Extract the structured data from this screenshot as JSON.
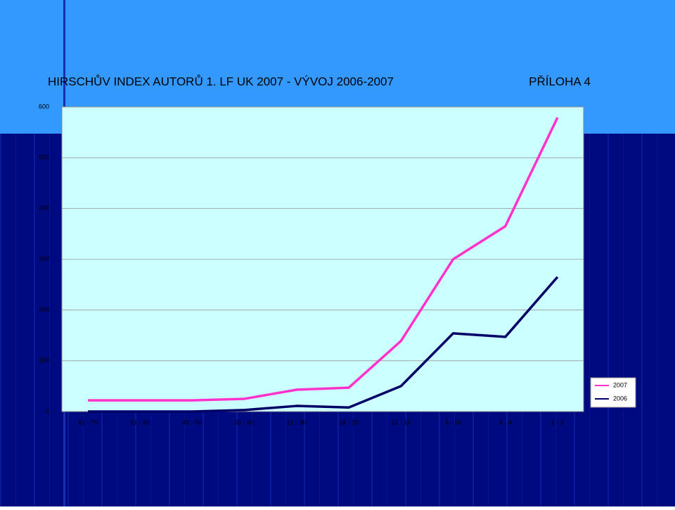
{
  "title": "HIRSCHŮV INDEX AUTORŮ 1. LF UK 2007 - VÝVOJ 2006-2007",
  "appendix": "PŘÍLOHA 4",
  "chart_data": {
    "type": "line",
    "categories": [
      "61 - 70",
      "51 - 60",
      "41 - 50",
      "31 - 40",
      "21 - 30",
      "16 - 20",
      "11 - 15",
      "5 - 10",
      "3 - 4",
      "1 - 2"
    ],
    "series": [
      {
        "name": "2007",
        "color": "#ff33cc",
        "values": [
          22,
          22,
          22,
          25,
          43,
          47,
          139,
          300,
          365,
          579
        ]
      },
      {
        "name": "2006",
        "color": "#000066",
        "values": [
          0,
          0,
          0,
          3,
          11,
          8,
          50,
          154,
          147,
          265
        ]
      }
    ],
    "ylim": [
      0,
      600
    ],
    "yticks": [
      0,
      100,
      200,
      300,
      400,
      500,
      600
    ],
    "grid": true,
    "legend": "right"
  }
}
